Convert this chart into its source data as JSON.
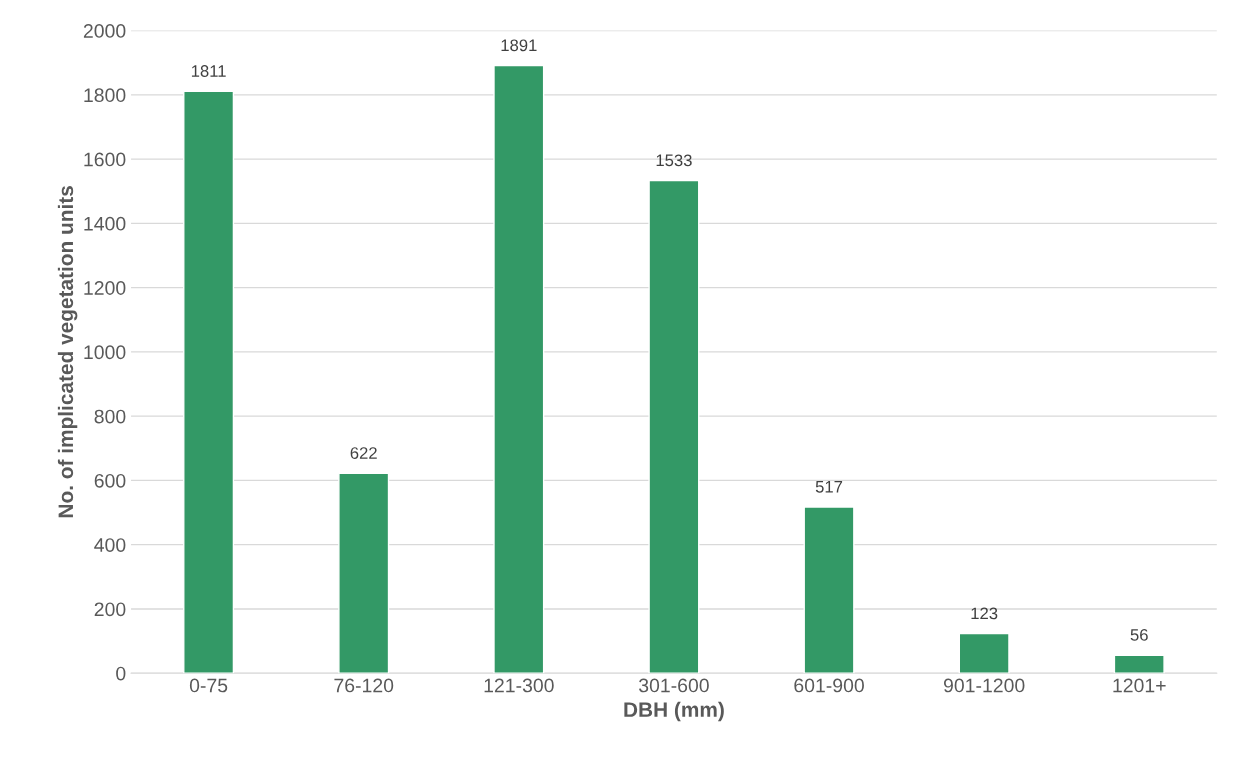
{
  "chart_data": {
    "type": "bar",
    "xlabel": "DBH (mm)",
    "ylabel": "No. of implicated vegetation units",
    "categories": [
      "0-75",
      "76-120",
      "121-300",
      "301-600",
      "601-900",
      "901-1200",
      "1201+"
    ],
    "values": [
      1811,
      622,
      1891,
      1533,
      517,
      123,
      56
    ],
    "color": "#339966",
    "ylim": [
      0,
      2000
    ],
    "yticks": [
      0,
      200,
      400,
      600,
      800,
      1000,
      1200,
      1400,
      1600,
      1800,
      2000
    ],
    "grid": "y",
    "data_labels": true
  }
}
